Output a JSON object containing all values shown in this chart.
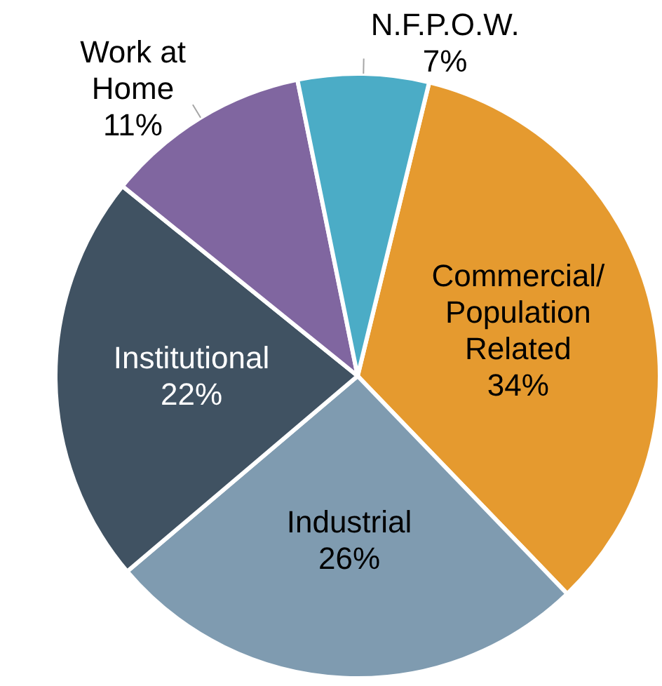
{
  "chart_data": {
    "type": "pie",
    "categories": [
      "Commercial/ Population Related",
      "Industrial",
      "Institutional",
      "Work at Home",
      "N.F.P.O.W."
    ],
    "values": [
      34,
      26,
      22,
      11,
      7
    ],
    "value_labels": [
      "34%",
      "26%",
      "22%",
      "11%",
      "7%"
    ],
    "colors": [
      "#e59a2f",
      "#7f9bb0",
      "#405262",
      "#8066a0",
      "#4bacc6"
    ],
    "legend": false
  }
}
